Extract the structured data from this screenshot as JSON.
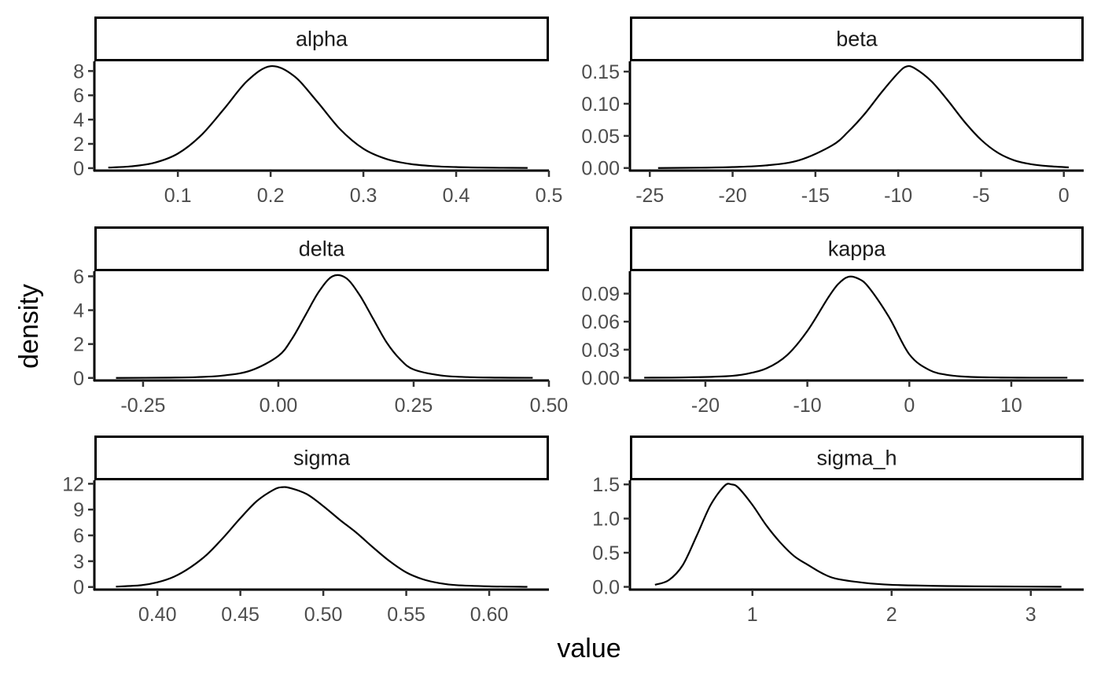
{
  "figure": {
    "xlabel": "value",
    "ylabel": "density",
    "colors": {
      "line": "#000000",
      "strip_border": "#000000",
      "tick_text": "#4d4d4d",
      "background": "#ffffff"
    }
  },
  "chart_data": [
    {
      "type": "line",
      "title": "alpha",
      "xlim": [
        0.01,
        0.5
      ],
      "ylim": [
        -0.2,
        8.8
      ],
      "xticks": [
        0.1,
        0.2,
        0.3,
        0.4,
        0.5
      ],
      "xtick_labels": [
        "0.1",
        "0.2",
        "0.3",
        "0.4",
        "0.5"
      ],
      "yticks": [
        0,
        2,
        4,
        6,
        8
      ],
      "ytick_labels": [
        "0",
        "2",
        "4",
        "6",
        "8"
      ],
      "series": [
        {
          "x": [
            0.025,
            0.05,
            0.075,
            0.1,
            0.125,
            0.15,
            0.175,
            0.2,
            0.225,
            0.25,
            0.275,
            0.3,
            0.325,
            0.35,
            0.375,
            0.4,
            0.425,
            0.45,
            0.477
          ],
          "y": [
            0.05,
            0.15,
            0.45,
            1.2,
            2.7,
            4.9,
            7.2,
            8.4,
            7.6,
            5.5,
            3.2,
            1.6,
            0.75,
            0.35,
            0.17,
            0.09,
            0.05,
            0.03,
            0.02
          ]
        }
      ]
    },
    {
      "type": "line",
      "title": "beta",
      "xlim": [
        -26.2,
        1.2
      ],
      "ylim": [
        -0.004,
        0.166
      ],
      "xticks": [
        -25,
        -20,
        -15,
        -10,
        -5,
        0
      ],
      "xtick_labels": [
        "-25",
        "-20",
        "-15",
        "-10",
        "-5",
        "0"
      ],
      "yticks": [
        0,
        0.05,
        0.1,
        0.15
      ],
      "ytick_labels": [
        "0.00",
        "0.05",
        "0.10",
        "0.15"
      ],
      "series": [
        {
          "x": [
            -24.5,
            -22,
            -20,
            -18,
            -16,
            -14,
            -13,
            -12,
            -11,
            -10,
            -9.5,
            -9,
            -8,
            -7,
            -6,
            -5,
            -4,
            -3,
            -2,
            -1,
            0.3
          ],
          "y": [
            0.0,
            0.0005,
            0.0015,
            0.004,
            0.012,
            0.035,
            0.057,
            0.085,
            0.118,
            0.148,
            0.158,
            0.155,
            0.135,
            0.105,
            0.072,
            0.044,
            0.024,
            0.012,
            0.006,
            0.003,
            0.001
          ]
        }
      ]
    },
    {
      "type": "line",
      "title": "delta",
      "xlim": [
        -0.34,
        0.5
      ],
      "ylim": [
        -0.15,
        6.3
      ],
      "xticks": [
        -0.25,
        0,
        0.25,
        0.5
      ],
      "xtick_labels": [
        "-0.25",
        "0.00",
        "0.25",
        "0.50"
      ],
      "yticks": [
        0,
        2,
        4,
        6
      ],
      "ytick_labels": [
        "0",
        "2",
        "4",
        "6"
      ],
      "series": [
        {
          "x": [
            -0.3,
            -0.2,
            -0.15,
            -0.1,
            -0.05,
            0.0,
            0.025,
            0.05,
            0.075,
            0.1,
            0.125,
            0.15,
            0.175,
            0.2,
            0.225,
            0.25,
            0.3,
            0.35,
            0.4,
            0.47
          ],
          "y": [
            0.0,
            0.02,
            0.05,
            0.15,
            0.45,
            1.3,
            2.3,
            3.7,
            5.1,
            6.0,
            5.9,
            4.9,
            3.5,
            2.1,
            1.1,
            0.5,
            0.15,
            0.05,
            0.02,
            0.01
          ]
        }
      ]
    },
    {
      "type": "line",
      "title": "kappa",
      "xlim": [
        -27.4,
        17.1
      ],
      "ylim": [
        -0.003,
        0.114
      ],
      "xticks": [
        -20,
        -10,
        0,
        10
      ],
      "xtick_labels": [
        "-20",
        "-10",
        "0",
        "10"
      ],
      "yticks": [
        0,
        0.03,
        0.06,
        0.09
      ],
      "ytick_labels": [
        "0.00",
        "0.03",
        "0.06",
        "0.09"
      ],
      "series": [
        {
          "x": [
            -26,
            -22,
            -18,
            -16,
            -14,
            -12,
            -10,
            -8,
            -7,
            -6,
            -5,
            -4,
            -2,
            0,
            2,
            4,
            6,
            8,
            10,
            12,
            15.5
          ],
          "y": [
            0.0,
            0.0003,
            0.0015,
            0.004,
            0.01,
            0.024,
            0.05,
            0.085,
            0.1,
            0.108,
            0.106,
            0.097,
            0.065,
            0.025,
            0.008,
            0.0025,
            0.0008,
            0.0003,
            0.0001,
            0.0,
            0.0
          ]
        }
      ]
    },
    {
      "type": "line",
      "title": "sigma",
      "xlim": [
        0.362,
        0.636
      ],
      "ylim": [
        -0.3,
        12.4
      ],
      "xticks": [
        0.4,
        0.45,
        0.5,
        0.55,
        0.6
      ],
      "xtick_labels": [
        "0.40",
        "0.45",
        "0.50",
        "0.55",
        "0.60"
      ],
      "yticks": [
        0,
        3,
        6,
        9,
        12
      ],
      "ytick_labels": [
        "0",
        "3",
        "6",
        "9",
        "12"
      ],
      "series": [
        {
          "x": [
            0.375,
            0.39,
            0.4,
            0.41,
            0.42,
            0.43,
            0.44,
            0.45,
            0.46,
            0.47,
            0.475,
            0.48,
            0.49,
            0.5,
            0.51,
            0.52,
            0.53,
            0.54,
            0.55,
            0.56,
            0.57,
            0.58,
            0.6,
            0.623
          ],
          "y": [
            0.05,
            0.2,
            0.55,
            1.2,
            2.3,
            3.8,
            5.8,
            8.0,
            10.0,
            11.3,
            11.6,
            11.5,
            10.8,
            9.4,
            7.8,
            6.3,
            4.6,
            3.0,
            1.7,
            0.9,
            0.45,
            0.22,
            0.08,
            0.02
          ]
        }
      ]
    },
    {
      "type": "line",
      "title": "sigma_h",
      "xlim": [
        0.12,
        3.38
      ],
      "ylim": [
        -0.04,
        1.56
      ],
      "xticks": [
        1,
        2,
        3
      ],
      "xtick_labels": [
        "1",
        "2",
        "3"
      ],
      "yticks": [
        0,
        0.5,
        1,
        1.5
      ],
      "ytick_labels": [
        "0.0",
        "0.5",
        "1.0",
        "1.5"
      ],
      "series": [
        {
          "x": [
            0.3,
            0.4,
            0.5,
            0.6,
            0.7,
            0.8,
            0.85,
            0.9,
            1.0,
            1.1,
            1.2,
            1.3,
            1.4,
            1.5,
            1.6,
            1.8,
            2.0,
            2.3,
            2.6,
            3.0,
            3.22
          ],
          "y": [
            0.03,
            0.1,
            0.32,
            0.75,
            1.2,
            1.48,
            1.5,
            1.45,
            1.2,
            0.9,
            0.65,
            0.45,
            0.32,
            0.2,
            0.12,
            0.06,
            0.03,
            0.015,
            0.008,
            0.004,
            0.002
          ]
        }
      ]
    }
  ]
}
